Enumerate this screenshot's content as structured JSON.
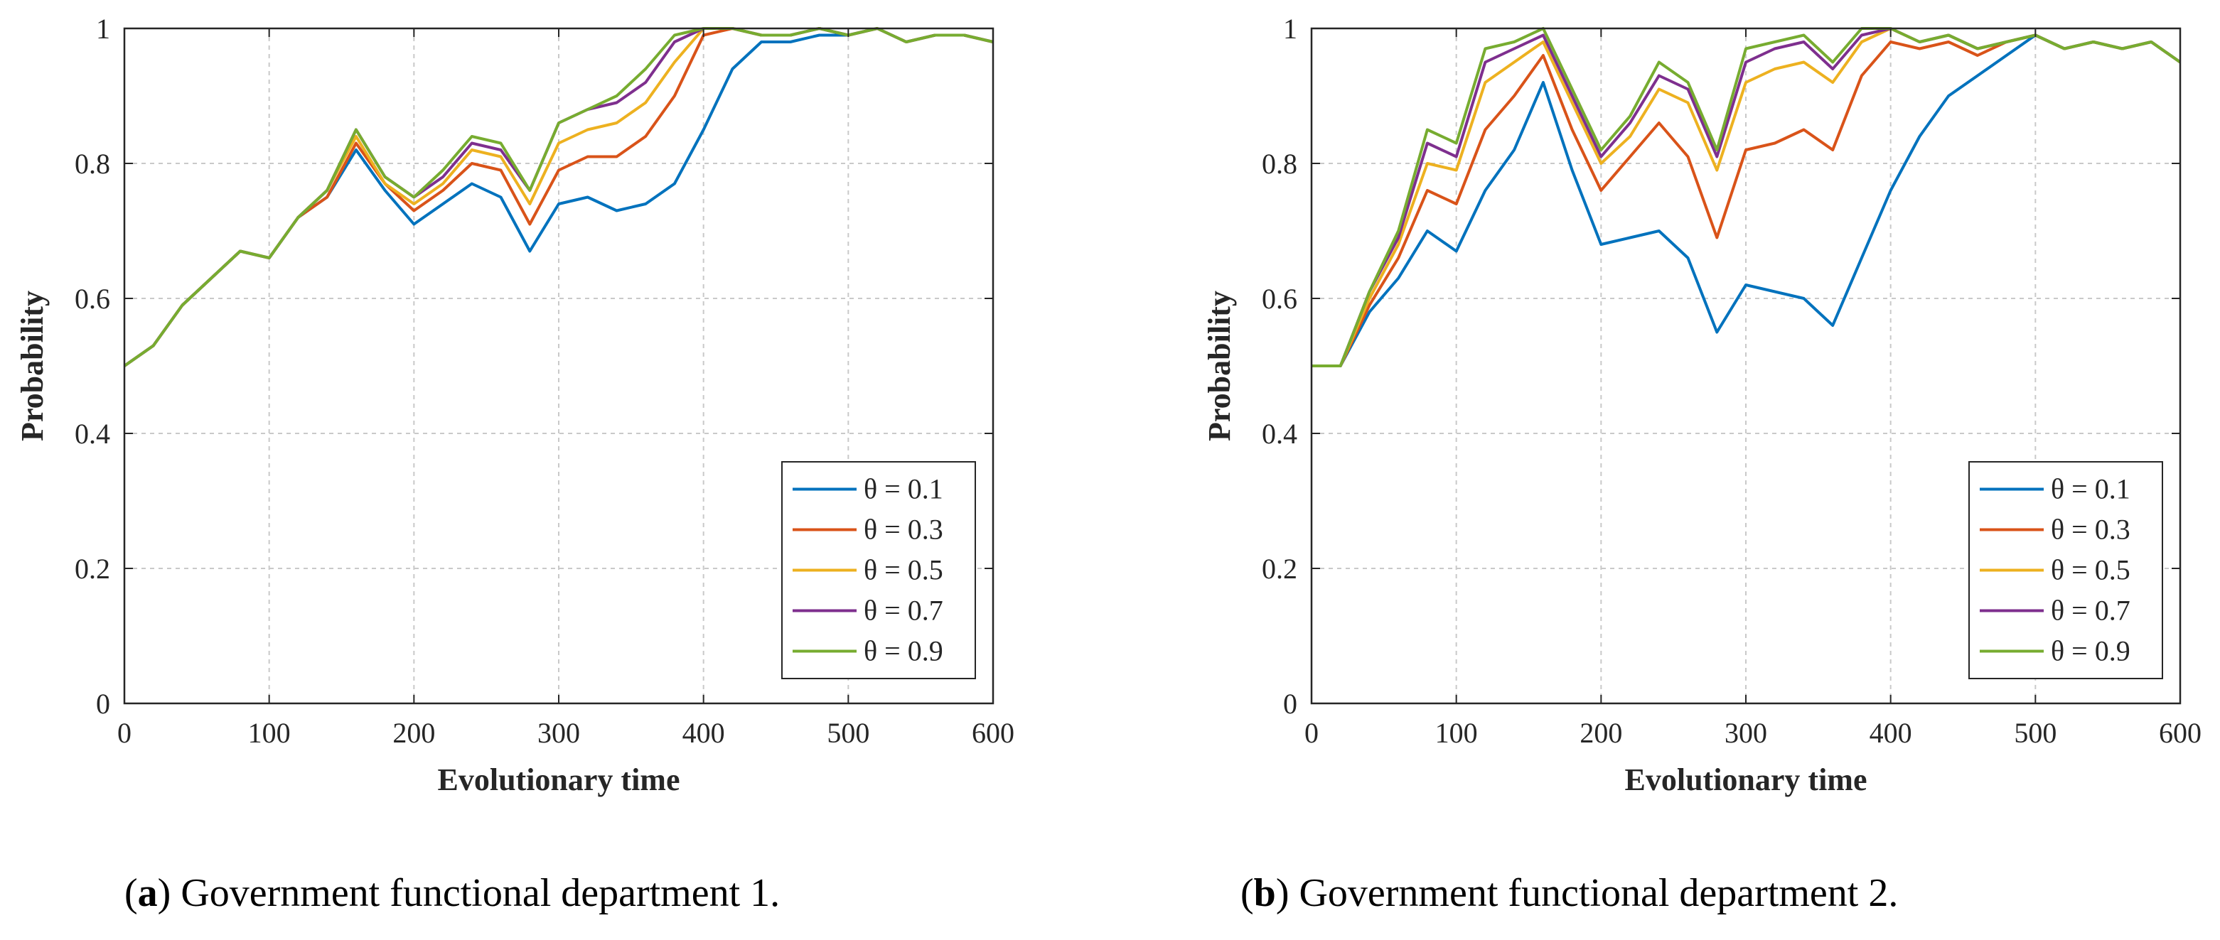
{
  "chart_data": [
    {
      "type": "line",
      "panel_label": "a",
      "caption": "Government functional department 1.",
      "title": "",
      "xlabel": "Evolutionary time",
      "ylabel": "Probability",
      "xlim": [
        0,
        600
      ],
      "ylim": [
        0,
        1
      ],
      "x_ticks": [
        "0",
        "100",
        "200",
        "300",
        "400",
        "500",
        "600"
      ],
      "y_ticks": [
        "0",
        "0.2",
        "0.4",
        "0.6",
        "0.8",
        "1"
      ],
      "grid": true,
      "legend_position": "bottom-right",
      "x": [
        0,
        20,
        40,
        60,
        80,
        100,
        120,
        140,
        160,
        180,
        200,
        220,
        240,
        260,
        280,
        300,
        320,
        340,
        360,
        380,
        400,
        420,
        440,
        460,
        480,
        500,
        520,
        540,
        560,
        580,
        600
      ],
      "series": [
        {
          "name": "θ = 0.1",
          "color": "#0072BD",
          "values": [
            0.5,
            0.53,
            0.59,
            0.63,
            0.67,
            0.66,
            0.72,
            0.75,
            0.82,
            0.76,
            0.71,
            0.74,
            0.77,
            0.75,
            0.67,
            0.74,
            0.75,
            0.73,
            0.74,
            0.77,
            0.85,
            0.94,
            0.98,
            0.98,
            0.99,
            0.99,
            1.0,
            0.98,
            0.99,
            0.99,
            0.98
          ]
        },
        {
          "name": "θ = 0.3",
          "color": "#D95319",
          "values": [
            0.5,
            0.53,
            0.59,
            0.63,
            0.67,
            0.66,
            0.72,
            0.75,
            0.83,
            0.77,
            0.73,
            0.76,
            0.8,
            0.79,
            0.71,
            0.79,
            0.81,
            0.81,
            0.84,
            0.9,
            0.99,
            1.0,
            0.99,
            0.99,
            1.0,
            0.99,
            1.0,
            0.98,
            0.99,
            0.99,
            0.98
          ]
        },
        {
          "name": "θ = 0.5",
          "color": "#EDB120",
          "values": [
            0.5,
            0.53,
            0.59,
            0.63,
            0.67,
            0.66,
            0.72,
            0.76,
            0.84,
            0.77,
            0.74,
            0.77,
            0.82,
            0.81,
            0.74,
            0.83,
            0.85,
            0.86,
            0.89,
            0.95,
            1.0,
            1.0,
            0.99,
            0.99,
            1.0,
            0.99,
            1.0,
            0.98,
            0.99,
            0.99,
            0.98
          ]
        },
        {
          "name": "θ = 0.7",
          "color": "#7E2F8E",
          "values": [
            0.5,
            0.53,
            0.59,
            0.63,
            0.67,
            0.66,
            0.72,
            0.76,
            0.85,
            0.78,
            0.75,
            0.78,
            0.83,
            0.82,
            0.76,
            0.86,
            0.88,
            0.89,
            0.92,
            0.98,
            1.0,
            1.0,
            0.99,
            0.99,
            1.0,
            0.99,
            1.0,
            0.98,
            0.99,
            0.99,
            0.98
          ]
        },
        {
          "name": "θ = 0.9",
          "color": "#77AC30",
          "values": [
            0.5,
            0.53,
            0.59,
            0.63,
            0.67,
            0.66,
            0.72,
            0.76,
            0.85,
            0.78,
            0.75,
            0.79,
            0.84,
            0.83,
            0.76,
            0.86,
            0.88,
            0.9,
            0.94,
            0.99,
            1.0,
            1.0,
            0.99,
            0.99,
            1.0,
            0.99,
            1.0,
            0.98,
            0.99,
            0.99,
            0.98
          ]
        }
      ]
    },
    {
      "type": "line",
      "panel_label": "b",
      "caption": "Government functional department 2.",
      "title": "",
      "xlabel": "Evolutionary time",
      "ylabel": "Probability",
      "xlim": [
        0,
        600
      ],
      "ylim": [
        0,
        1
      ],
      "x_ticks": [
        "0",
        "100",
        "200",
        "300",
        "400",
        "500",
        "600"
      ],
      "y_ticks": [
        "0",
        "0.2",
        "0.4",
        "0.6",
        "0.8",
        "1"
      ],
      "grid": true,
      "legend_position": "bottom-right",
      "x": [
        0,
        20,
        40,
        60,
        80,
        100,
        120,
        140,
        160,
        180,
        200,
        220,
        240,
        260,
        280,
        300,
        320,
        340,
        360,
        380,
        400,
        420,
        440,
        460,
        480,
        500,
        520,
        540,
        560,
        580,
        600
      ],
      "series": [
        {
          "name": "θ = 0.1",
          "color": "#0072BD",
          "values": [
            0.5,
            0.5,
            0.58,
            0.63,
            0.7,
            0.67,
            0.76,
            0.82,
            0.92,
            0.79,
            0.68,
            0.69,
            0.7,
            0.66,
            0.55,
            0.62,
            0.61,
            0.6,
            0.56,
            0.66,
            0.76,
            0.84,
            0.9,
            0.93,
            0.96,
            0.99,
            0.97,
            0.98,
            0.97,
            0.98,
            0.95
          ]
        },
        {
          "name": "θ = 0.3",
          "color": "#D95319",
          "values": [
            0.5,
            0.5,
            0.59,
            0.66,
            0.76,
            0.74,
            0.85,
            0.9,
            0.96,
            0.85,
            0.76,
            0.81,
            0.86,
            0.81,
            0.69,
            0.82,
            0.83,
            0.85,
            0.82,
            0.93,
            0.98,
            0.97,
            0.98,
            0.96,
            0.98,
            0.99,
            0.97,
            0.98,
            0.97,
            0.98,
            0.95
          ]
        },
        {
          "name": "θ = 0.5",
          "color": "#EDB120",
          "values": [
            0.5,
            0.5,
            0.6,
            0.68,
            0.8,
            0.79,
            0.92,
            0.95,
            0.98,
            0.89,
            0.8,
            0.84,
            0.91,
            0.89,
            0.79,
            0.92,
            0.94,
            0.95,
            0.92,
            0.98,
            1.0,
            0.98,
            0.99,
            0.97,
            0.98,
            0.99,
            0.97,
            0.98,
            0.97,
            0.98,
            0.95
          ]
        },
        {
          "name": "θ = 0.7",
          "color": "#7E2F8E",
          "values": [
            0.5,
            0.5,
            0.61,
            0.69,
            0.83,
            0.81,
            0.95,
            0.97,
            0.99,
            0.9,
            0.81,
            0.86,
            0.93,
            0.91,
            0.81,
            0.95,
            0.97,
            0.98,
            0.94,
            0.99,
            1.0,
            0.98,
            0.99,
            0.97,
            0.98,
            0.99,
            0.97,
            0.98,
            0.97,
            0.98,
            0.95
          ]
        },
        {
          "name": "θ = 0.9",
          "color": "#77AC30",
          "values": [
            0.5,
            0.5,
            0.61,
            0.7,
            0.85,
            0.83,
            0.97,
            0.98,
            1.0,
            0.91,
            0.82,
            0.87,
            0.95,
            0.92,
            0.82,
            0.97,
            0.98,
            0.99,
            0.95,
            1.0,
            1.0,
            0.98,
            0.99,
            0.97,
            0.98,
            0.99,
            0.97,
            0.98,
            0.97,
            0.98,
            0.95
          ]
        }
      ]
    }
  ]
}
